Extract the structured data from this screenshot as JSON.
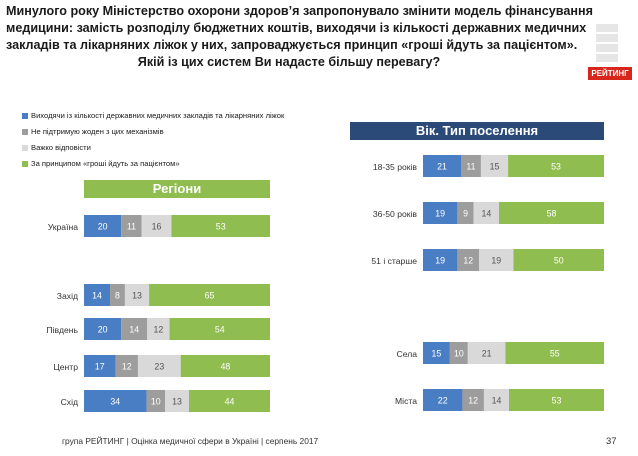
{
  "title": {
    "line1": "Минулого року Міністерство охорони здоров’я запропонувало змінити модель фінансування",
    "line2": "медицини: замість розподілу бюджетних коштів, виходячи із кількості державних медичних",
    "line3": "закладів та лікарняних ліжок у них, запроваджується принцип «гроші йдуть за пацієнтом».",
    "line4": "Якій із цих систем Ви надасте більшу перевагу?"
  },
  "logo": {
    "text": "РЕЙТИНГ"
  },
  "legend": [
    {
      "label": "Виходячи із кількості державних медичних закладів та лікарняних ліжок",
      "color": "#4a7ec4"
    },
    {
      "label": "Не підтримую жоден з цих механізмів",
      "color": "#9d9d9d"
    },
    {
      "label": "Важко відповісти",
      "color": "#d9d9d9"
    },
    {
      "label": "За принципом «гроші йдуть за пацієнтом»",
      "color": "#8fbd4f"
    }
  ],
  "sections": {
    "regions": "Регіони",
    "age_settlement": "Вік. Тип поселення"
  },
  "colors": {
    "banner_regions": "#8fbd4f",
    "banner_age": "#2c4a78",
    "series": [
      "#4a7ec4",
      "#9d9d9d",
      "#d9d9d9",
      "#8fbd4f"
    ]
  },
  "chart_data": [
    {
      "type": "bar",
      "orientation": "horizontal",
      "stacked": true,
      "title": "Регіони",
      "categories": [
        "Україна",
        "Захід",
        "Південь",
        "Центр",
        "Схід"
      ],
      "series": [
        {
          "name": "Виходячи із кількості державних медичних закладів та лікарняних ліжок",
          "values": [
            20,
            14,
            20,
            17,
            34
          ]
        },
        {
          "name": "Не підтримую жоден з цих механізмів",
          "values": [
            11,
            8,
            14,
            12,
            10
          ]
        },
        {
          "name": "Важко відповісти",
          "values": [
            16,
            13,
            12,
            23,
            13
          ]
        },
        {
          "name": "За принципом «гроші йдуть за пацієнтом»",
          "values": [
            53,
            65,
            54,
            48,
            44
          ]
        }
      ],
      "xlim": [
        0,
        100
      ]
    },
    {
      "type": "bar",
      "orientation": "horizontal",
      "stacked": true,
      "title": "Вік. Тип поселення",
      "categories": [
        "18-35 років",
        "36-50 років",
        "51 і старше",
        "Села",
        "Міста"
      ],
      "series": [
        {
          "name": "Виходячи із кількості державних медичних закладів та лікарняних ліжок",
          "values": [
            21,
            19,
            19,
            15,
            22
          ]
        },
        {
          "name": "Не підтримую жоден з цих механізмів",
          "values": [
            11,
            9,
            12,
            10,
            12
          ]
        },
        {
          "name": "Важко відповісти",
          "values": [
            15,
            14,
            19,
            21,
            14
          ]
        },
        {
          "name": "За принципом «гроші йдуть за пацієнтом»",
          "values": [
            53,
            58,
            50,
            55,
            53
          ]
        }
      ],
      "xlim": [
        0,
        100
      ]
    }
  ],
  "footer": {
    "text": "група РЕЙТИНГ  |  Оцінка медичної сфери в Україні  |  серпень 2017",
    "page": "37"
  }
}
